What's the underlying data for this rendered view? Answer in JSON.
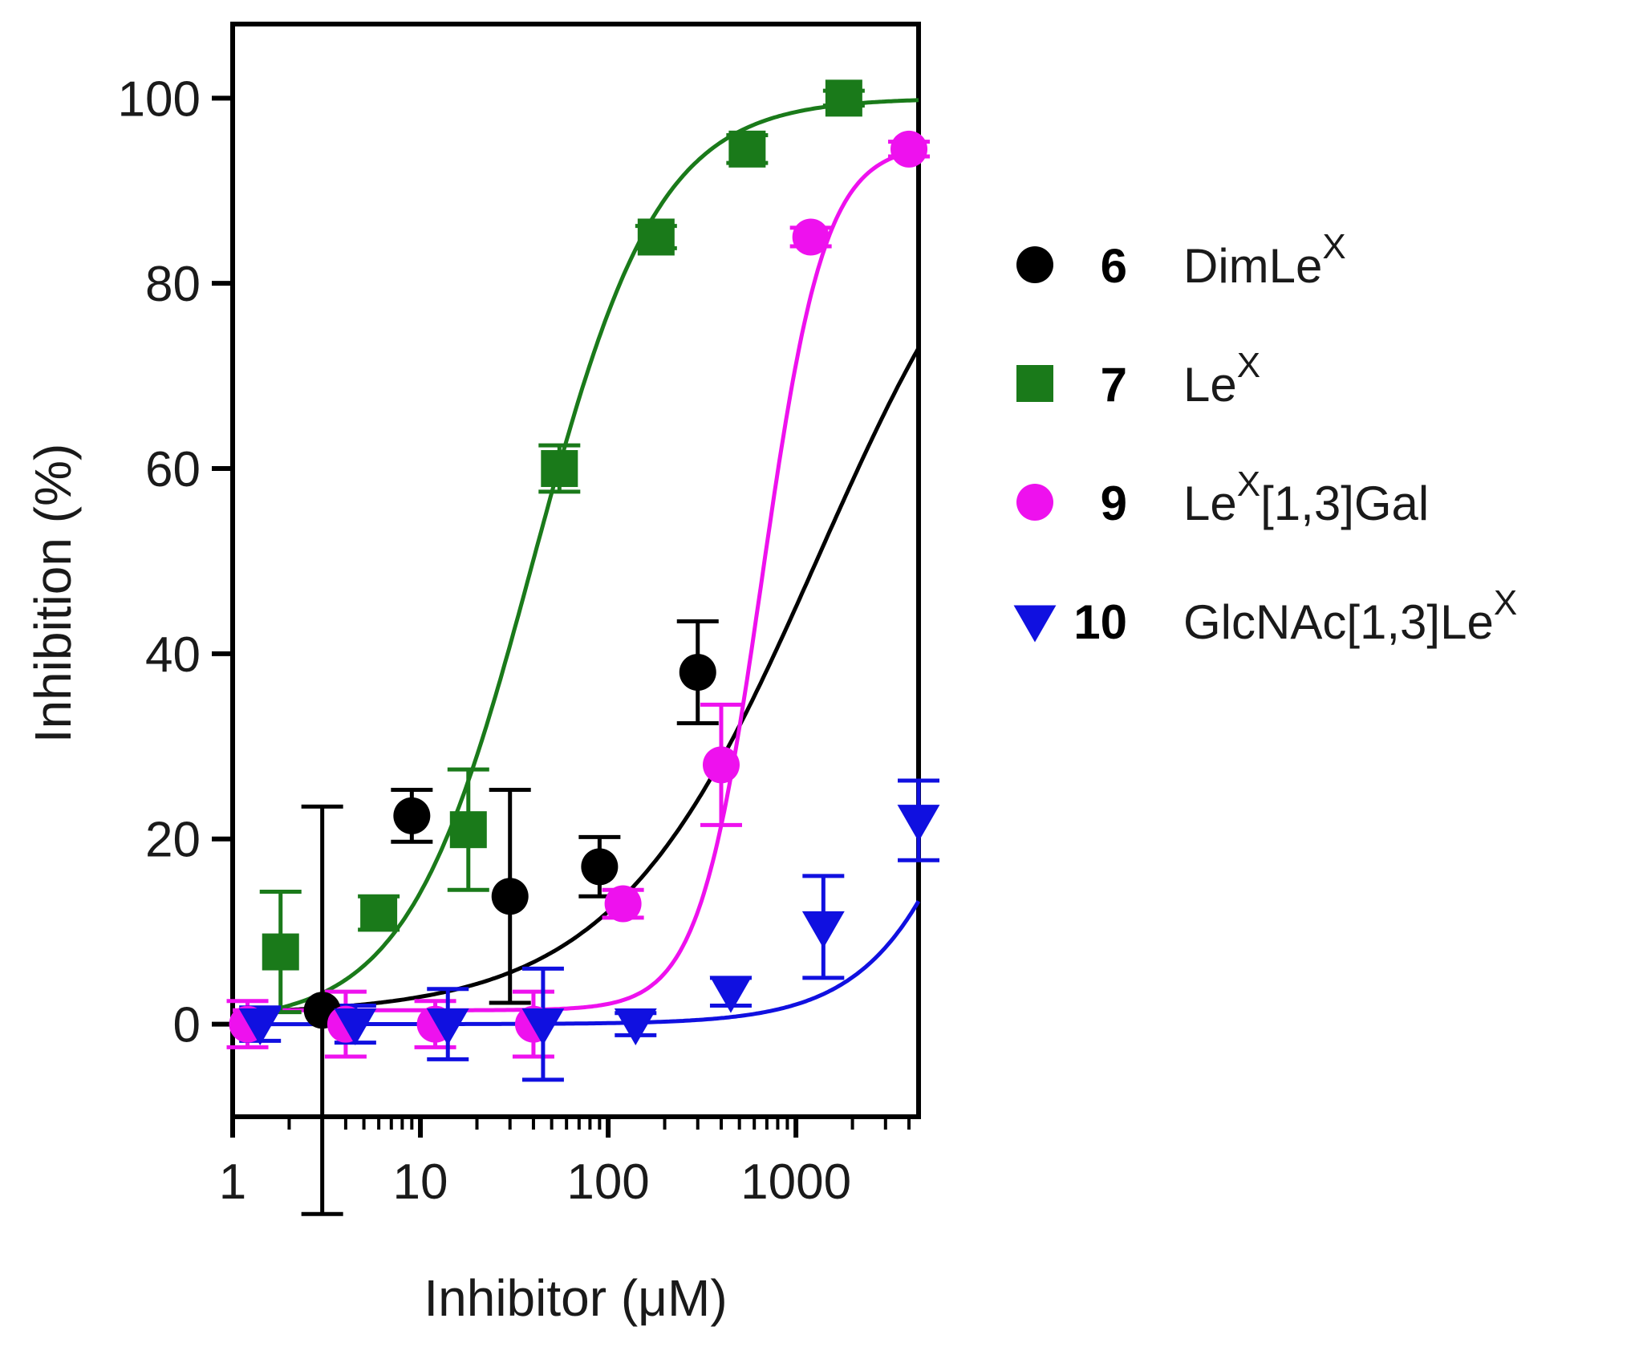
{
  "chart_data": {
    "type": "scatter",
    "title": "",
    "xlabel": "Inhibitor (μM)",
    "ylabel": "Inhibition (%)",
    "xscale": "log",
    "xlim": [
      1,
      4500
    ],
    "ylim": [
      -10,
      108
    ],
    "xticks": [
      1,
      10,
      100,
      1000
    ],
    "xtick_labels": [
      "1",
      "10",
      "100",
      "1000"
    ],
    "yticks": [
      0,
      20,
      40,
      60,
      80,
      100
    ],
    "ytick_labels": [
      "0",
      "20",
      "40",
      "60",
      "80",
      "100"
    ],
    "legend_position": "right",
    "series": [
      {
        "id": "s6",
        "number": "6",
        "name_parts": [
          "DimLe",
          "X",
          ""
        ],
        "color": "#000000",
        "marker": "circle",
        "x": [
          3,
          9,
          30,
          90,
          300
        ],
        "y": [
          1.5,
          22.5,
          13.8,
          17,
          38
        ],
        "err": [
          22,
          2.8,
          11.5,
          3.2,
          5.5
        ],
        "fit": {
          "bottom": 1,
          "top": 100,
          "logEC50": 3.12,
          "hill": 0.8
        }
      },
      {
        "id": "s7",
        "number": "7",
        "name_parts": [
          "Le",
          "X",
          ""
        ],
        "color": "#1a7a1a",
        "marker": "square",
        "x": [
          1.8,
          6,
          18,
          55,
          180,
          550,
          1800
        ],
        "y": [
          7.8,
          12,
          21,
          60,
          85,
          94.5,
          100
        ],
        "err": [
          6.5,
          1.8,
          6.5,
          2.5,
          1.2,
          1.5,
          0.8
        ],
        "fit": {
          "bottom": 0,
          "top": 100,
          "logEC50": 1.6,
          "hill": 1.3
        }
      },
      {
        "id": "s9",
        "number": "9",
        "name_parts": [
          "Le",
          "X",
          "[1,3]Gal"
        ],
        "color": "#ee11ee",
        "marker": "circle",
        "x": [
          1.2,
          4,
          12,
          40,
          120,
          400,
          1200,
          4000
        ],
        "y": [
          0,
          0,
          0,
          0,
          13,
          28,
          85,
          94.5
        ],
        "err": [
          2.5,
          3.5,
          2.5,
          3.5,
          1.5,
          6.5,
          1.0,
          0.8
        ],
        "fit": {
          "bottom": 1.5,
          "top": 95,
          "logEC50": 2.82,
          "hill": 2.6
        }
      },
      {
        "id": "s10",
        "number": "10",
        "name_parts": [
          "GlcNAc[1,3]Le",
          "X",
          ""
        ],
        "color": "#1010e0",
        "marker": "triangle-down",
        "x": [
          1.4,
          4.5,
          14,
          45,
          140,
          450,
          1400,
          4500
        ],
        "y": [
          0,
          0,
          0,
          0,
          0,
          3.5,
          10.5,
          22
        ],
        "err": [
          1.8,
          2.0,
          3.8,
          6.0,
          1.2,
          1.5,
          5.5,
          4.3
        ],
        "fit": {
          "bottom": 0,
          "top": 100,
          "logEC50": 4.28,
          "hill": 1.3
        }
      }
    ]
  }
}
